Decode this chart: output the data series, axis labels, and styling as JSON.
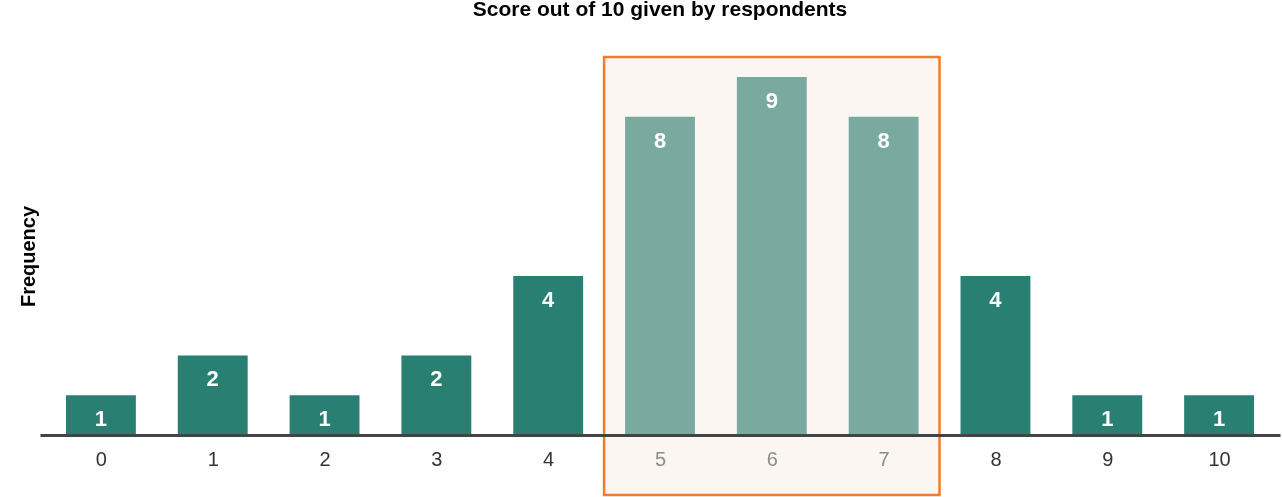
{
  "chart_data": {
    "type": "bar",
    "title": "Score out of 10 given by respondents",
    "ylabel": "Frequency",
    "x": [
      0,
      1,
      2,
      3,
      4,
      5,
      6,
      7,
      8,
      9,
      10
    ],
    "values": [
      1,
      2,
      1,
      2,
      4,
      8,
      9,
      8,
      4,
      1,
      1
    ],
    "colors": [
      "#2a7f73",
      "#2a7f73",
      "#2a7f73",
      "#2a7f73",
      "#2a7f73",
      "#7aaa9f",
      "#7aaa9f",
      "#7aaa9f",
      "#2a7f73",
      "#2a7f73",
      "#2a7f73"
    ],
    "xlim": [
      -0.5,
      10.5
    ],
    "xticks": [
      0,
      1,
      2,
      3,
      4,
      5,
      6,
      7,
      8,
      9,
      10
    ],
    "data_labels": true,
    "bands": [
      {
        "axis": "x",
        "from": 4.5,
        "to": 7.5,
        "color": "#fbf6f2"
      }
    ],
    "grid": false
  }
}
